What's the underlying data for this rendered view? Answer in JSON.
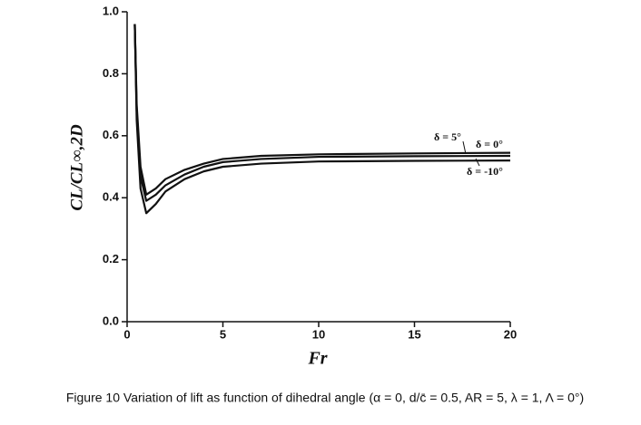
{
  "chart_data": {
    "type": "line",
    "xlabel": "Fr",
    "ylabel": "CL/CL∞,2D",
    "caption": "Figure 10 Variation of lift as function of dihedral angle (α = 0, d/c̄ = 0.5, AR = 5, λ = 1, Λ = 0°)",
    "x": [
      0.4,
      0.5,
      0.7,
      1,
      1.5,
      2,
      3,
      4,
      5,
      7,
      10,
      15,
      20
    ],
    "series": [
      {
        "name": "δ = 5°",
        "color": "#111111",
        "values": [
          0.96,
          0.7,
          0.5,
          0.41,
          0.43,
          0.46,
          0.49,
          0.51,
          0.525,
          0.535,
          0.54,
          0.543,
          0.545
        ]
      },
      {
        "name": "δ = 0°",
        "color": "#111111",
        "values": [
          0.96,
          0.68,
          0.47,
          0.39,
          0.41,
          0.44,
          0.475,
          0.5,
          0.515,
          0.525,
          0.532,
          0.534,
          0.535
        ]
      },
      {
        "name": "δ = -10°",
        "color": "#111111",
        "values": [
          0.96,
          0.65,
          0.43,
          0.35,
          0.38,
          0.42,
          0.46,
          0.485,
          0.5,
          0.51,
          0.517,
          0.519,
          0.52
        ]
      }
    ],
    "xlim": [
      0,
      20
    ],
    "xticks": [
      0,
      5,
      10,
      15,
      20
    ],
    "ylim": [
      0,
      1
    ],
    "yticks": [
      {
        "value": 0,
        "label": "0.0"
      },
      0.2,
      0.4,
      0.6,
      0.8,
      {
        "value": 1,
        "label": "1.0"
      }
    ]
  }
}
